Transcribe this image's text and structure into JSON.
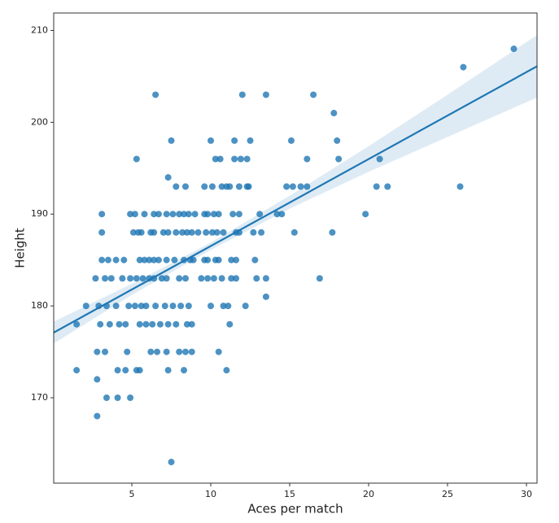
{
  "chart_data": {
    "type": "scatter",
    "x_label": "Aces per match",
    "y_label": "Height",
    "color": "#1f77b4",
    "xlim": [
      0.05,
      30.67
    ],
    "ylim": [
      160.7,
      211.9
    ],
    "xticks": [
      5,
      10,
      15,
      20,
      25,
      30
    ],
    "yticks": [
      170,
      180,
      190,
      200,
      210
    ],
    "grid": false,
    "x": [
      29.2,
      26,
      6.5,
      12,
      13.5,
      16.5,
      17.8,
      7.5,
      10,
      11.5,
      12.5,
      15.1,
      18,
      5.3,
      10.3,
      10.6,
      11.5,
      11.9,
      12.3,
      16.1,
      18.1,
      20.7,
      7.3,
      7.8,
      8.4,
      9.6,
      10.1,
      10.7,
      11,
      11.2,
      11.8,
      12.3,
      12.4,
      14.8,
      15.2,
      15.7,
      16.1,
      20.5,
      21.2,
      25.8,
      3.1,
      4.9,
      5.2,
      5.8,
      6.4,
      6.7,
      7.2,
      7.6,
      8,
      8.3,
      8.6,
      9,
      9.6,
      9.8,
      10.2,
      10.5,
      11.4,
      11.8,
      13.1,
      14.2,
      14.5,
      19.8,
      3.1,
      5.1,
      5.4,
      5.6,
      6.2,
      6.4,
      7,
      7.3,
      7.8,
      8.2,
      8.5,
      8.8,
      9.2,
      9.7,
      10.1,
      10.4,
      10.8,
      11.6,
      11.8,
      12.7,
      13.2,
      15.3,
      17.7,
      3.1,
      3.5,
      4,
      4.5,
      5.5,
      5.8,
      6.1,
      6.4,
      6.7,
      7.2,
      7.7,
      8.3,
      8.7,
      8.9,
      9.6,
      9.8,
      10.3,
      10.5,
      11.3,
      11.6,
      12.8,
      2.7,
      3.3,
      3.7,
      4.4,
      4.9,
      5.3,
      5.7,
      6.1,
      6.4,
      6.9,
      7.2,
      8,
      8.4,
      9.4,
      9.8,
      10.2,
      10.7,
      11.3,
      11.6,
      12.9,
      13.5,
      16.9,
      13.5,
      2.1,
      2.9,
      3.4,
      4,
      4.8,
      5.2,
      5.6,
      5.9,
      6.5,
      7.1,
      7.6,
      8.1,
      8.6,
      10,
      10.8,
      11.1,
      12.2,
      1.5,
      3,
      3.6,
      4.2,
      4.6,
      5.5,
      5.9,
      6.3,
      6.8,
      7.3,
      7.8,
      8.5,
      8.8,
      11.2,
      2.8,
      3.3,
      4.7,
      6.2,
      6.6,
      7.2,
      8,
      8.4,
      8.8,
      10.5,
      1.5,
      4.1,
      4.6,
      5.3,
      5.5,
      7.3,
      8.3,
      11,
      2.8,
      3.4,
      4.1,
      4.9,
      2.8,
      7.5
    ],
    "values": [
      208,
      206,
      203,
      203,
      203,
      203,
      201,
      198,
      198,
      198,
      198,
      198,
      198,
      196,
      196,
      196,
      196,
      196,
      196,
      196,
      196,
      196,
      194,
      193,
      193,
      193,
      193,
      193,
      193,
      193,
      193,
      193,
      193,
      193,
      193,
      193,
      193,
      193,
      193,
      193,
      190,
      190,
      190,
      190,
      190,
      190,
      190,
      190,
      190,
      190,
      190,
      190,
      190,
      190,
      190,
      190,
      190,
      190,
      190,
      190,
      190,
      190,
      188,
      188,
      188,
      188,
      188,
      188,
      188,
      188,
      188,
      188,
      188,
      188,
      188,
      188,
      188,
      188,
      188,
      188,
      188,
      188,
      188,
      188,
      188,
      185,
      185,
      185,
      185,
      185,
      185,
      185,
      185,
      185,
      185,
      185,
      185,
      185,
      185,
      185,
      185,
      185,
      185,
      185,
      185,
      185,
      183,
      183,
      183,
      183,
      183,
      183,
      183,
      183,
      183,
      183,
      183,
      183,
      183,
      183,
      183,
      183,
      183,
      183,
      183,
      183,
      183,
      183,
      181,
      180,
      180,
      180,
      180,
      180,
      180,
      180,
      180,
      180,
      180,
      180,
      180,
      180,
      180,
      180,
      180,
      180,
      178,
      178,
      178,
      178,
      178,
      178,
      178,
      178,
      178,
      178,
      178,
      178,
      178,
      178,
      175,
      175,
      175,
      175,
      175,
      175,
      175,
      175,
      175,
      175,
      173,
      173,
      173,
      173,
      173,
      173,
      173,
      173,
      172,
      170,
      170,
      170,
      168,
      163
    ],
    "regression": {
      "x": [
        0.05,
        30.67
      ],
      "y": [
        177.1,
        206.1
      ]
    },
    "ci": {
      "x": [
        0.05,
        5,
        10,
        15,
        20,
        25,
        30.67
      ],
      "lower": [
        175.9,
        181.2,
        186.1,
        190.6,
        194.6,
        198.4,
        202.7
      ],
      "upper": [
        178.3,
        182.4,
        186.9,
        192.0,
        197.4,
        203.0,
        209.5
      ]
    }
  }
}
